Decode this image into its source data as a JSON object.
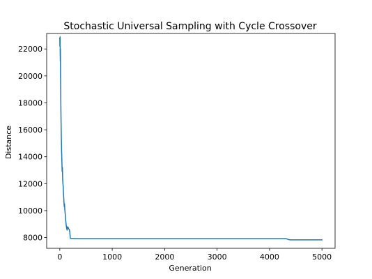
{
  "chart_data": {
    "type": "line",
    "title": "Stochastic Universal Sampling with Cycle Crossover",
    "xlabel": "Generation",
    "ylabel": "Distance",
    "xlim": [
      -250,
      5250
    ],
    "ylim": [
      7200,
      23150
    ],
    "xticks": [
      0,
      1000,
      2000,
      3000,
      4000,
      5000
    ],
    "yticks": [
      8000,
      10000,
      12000,
      14000,
      16000,
      18000,
      20000,
      22000
    ],
    "grid": false,
    "colors": {
      "line": "#1f77b4"
    },
    "series": [
      {
        "x": [
          0,
          3,
          6,
          8,
          10,
          12,
          15,
          18,
          20,
          23,
          26,
          30,
          35,
          40,
          45,
          50,
          55,
          60,
          65,
          70,
          75,
          80,
          85,
          90,
          95,
          100,
          105,
          110,
          120,
          130,
          140,
          150,
          160,
          170,
          180,
          190,
          200,
          220,
          250,
          300,
          400,
          500,
          1000,
          1500,
          2000,
          2500,
          3000,
          3500,
          4000,
          4300,
          4330,
          4360,
          4400,
          4500,
          5000
        ],
        "y": [
          22800,
          22200,
          22900,
          21800,
          21100,
          22000,
          20000,
          19000,
          18000,
          17000,
          16200,
          15300,
          14400,
          13700,
          12900,
          13200,
          12300,
          12000,
          11800,
          11300,
          11000,
          10600,
          10300,
          10500,
          10100,
          9900,
          9700,
          9400,
          9000,
          8700,
          8550,
          8800,
          8750,
          8650,
          8600,
          8450,
          7950,
          7930,
          7930,
          7920,
          7920,
          7920,
          7920,
          7920,
          7920,
          7920,
          7920,
          7920,
          7920,
          7920,
          7900,
          7850,
          7830,
          7830,
          7830
        ]
      }
    ]
  }
}
